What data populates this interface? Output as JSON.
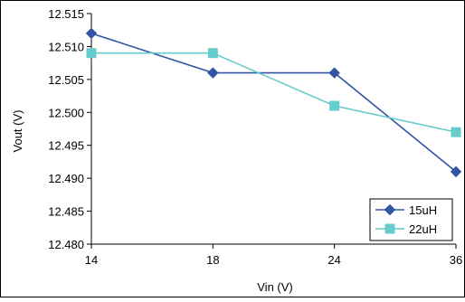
{
  "chart_data": {
    "type": "line",
    "title": "",
    "xlabel": "Vin (V)",
    "ylabel": "Vout (V)",
    "categories": [
      "14",
      "18",
      "24",
      "36"
    ],
    "ylim": [
      12.48,
      12.515
    ],
    "yticks": [
      "12.515",
      "12.510",
      "12.505",
      "12.500",
      "12.495",
      "12.490",
      "12.485",
      "12.480"
    ],
    "grid": false,
    "legend_position": "bottom-right",
    "series": [
      {
        "name": "15uH",
        "values": [
          12.512,
          12.506,
          12.506,
          12.491
        ],
        "color": "#3355a5",
        "marker": "diamond"
      },
      {
        "name": "22uH",
        "values": [
          12.509,
          12.509,
          12.501,
          12.497
        ],
        "color": "#66cccc",
        "marker": "square"
      }
    ]
  }
}
